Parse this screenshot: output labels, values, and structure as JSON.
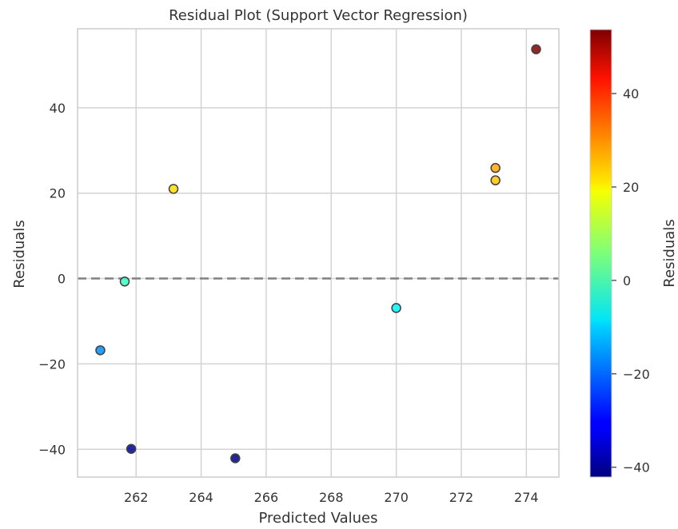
{
  "chart_data": {
    "type": "scatter",
    "title": "Residual Plot (Support Vector Regression)",
    "xlabel": "Predicted Values",
    "ylabel": "Residuals",
    "xlim": [
      260.2,
      275.0
    ],
    "ylim": [
      -46.5,
      58.5
    ],
    "x_ticks": [
      262,
      264,
      266,
      268,
      270,
      272,
      274
    ],
    "x_tick_labels": [
      "262",
      "264",
      "266",
      "268",
      "270",
      "272",
      "274"
    ],
    "y_ticks": [
      -40,
      -20,
      0,
      20,
      40
    ],
    "y_tick_labels": [
      "−40",
      "−20",
      "0",
      "20",
      "40"
    ],
    "grid": true,
    "reference_line": {
      "y": 0,
      "style": "dashed",
      "color": "#808080"
    },
    "points": [
      {
        "x": 260.9,
        "y": -16.8
      },
      {
        "x": 261.65,
        "y": -0.7
      },
      {
        "x": 261.85,
        "y": -39.9
      },
      {
        "x": 263.15,
        "y": 21.0
      },
      {
        "x": 265.05,
        "y": -42.1
      },
      {
        "x": 270.0,
        "y": -6.9
      },
      {
        "x": 273.05,
        "y": 23.0
      },
      {
        "x": 273.05,
        "y": 25.9
      },
      {
        "x": 274.3,
        "y": 53.7
      }
    ],
    "colorbar": {
      "label": "Residuals",
      "colormap": "jet",
      "range": [
        -42.1,
        53.7
      ],
      "ticks": [
        -40,
        -20,
        0,
        20,
        40
      ],
      "tick_labels": [
        "−40",
        "−20",
        "0",
        "20",
        "40"
      ]
    },
    "colors": {
      "grid": "#d3d3d3",
      "axes_edge": "#cccccc",
      "point_edge": "#404040",
      "reference_line": "#808080",
      "text": "#333333"
    }
  }
}
